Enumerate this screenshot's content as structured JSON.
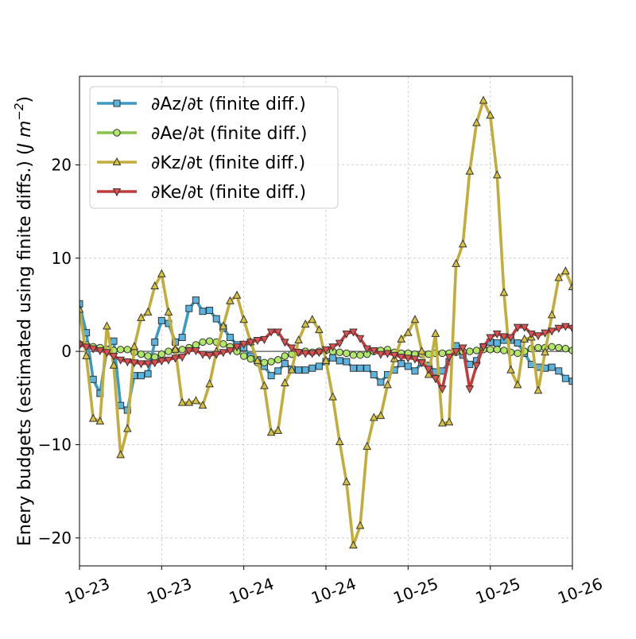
{
  "chart_data": {
    "type": "line",
    "title": "",
    "xlabel": "",
    "ylabel": "Enery budgets (estimated using finite diffs.) (J m⁻²)",
    "ylabel_main": "Enery budgets (estimated using finite diffs.) (",
    "ylabel_unit": "J m",
    "ylabel_exp": "−2",
    "ylabel_close": ")",
    "xlim": [
      0,
      72
    ],
    "ylim": [
      -23.0,
      29.5
    ],
    "grid": true,
    "legend_position": "top-left",
    "xticks": [
      {
        "x": 0,
        "label": "10-23"
      },
      {
        "x": 12,
        "label": "10-23"
      },
      {
        "x": 24,
        "label": "10-24"
      },
      {
        "x": 36,
        "label": "10-24"
      },
      {
        "x": 48,
        "label": "10-25"
      },
      {
        "x": 60,
        "label": "10-25"
      },
      {
        "x": 72,
        "label": "10-26"
      }
    ],
    "yticks": [
      {
        "y": -20,
        "label": "−20"
      },
      {
        "y": -10,
        "label": "−10"
      },
      {
        "y": 0,
        "label": "0"
      },
      {
        "y": 10,
        "label": "10"
      },
      {
        "y": 20,
        "label": "20"
      }
    ],
    "x": [
      0,
      1,
      2,
      3,
      4,
      5,
      6,
      7,
      8,
      9,
      10,
      11,
      12,
      13,
      14,
      15,
      16,
      17,
      18,
      19,
      20,
      21,
      22,
      23,
      24,
      25,
      26,
      27,
      28,
      29,
      30,
      31,
      32,
      33,
      34,
      35,
      36,
      37,
      38,
      39,
      40,
      41,
      42,
      43,
      44,
      45,
      46,
      47,
      48,
      49,
      50,
      51,
      52,
      53,
      54,
      55,
      56,
      57,
      58,
      59,
      60,
      61,
      62,
      63,
      64,
      65,
      66,
      67,
      68,
      69,
      70,
      71,
      72
    ],
    "series": [
      {
        "name": "∂Az/∂t (finite diff.)",
        "color": "#3b9ac1",
        "face": "#5bb4e0",
        "marker": "square",
        "values": [
          5.1,
          2.0,
          -3.0,
          -4.5,
          0.2,
          1.1,
          -5.8,
          -6.3,
          -2.6,
          -2.6,
          -2.4,
          1.0,
          3.3,
          3.0,
          1.0,
          1.5,
          4.6,
          5.5,
          4.3,
          4.4,
          3.5,
          2.5,
          1.5,
          0.7,
          0.4,
          -0.5,
          -0.9,
          -1.6,
          -2.6,
          -2.1,
          -1.3,
          -1.9,
          -2.0,
          -2.0,
          -1.8,
          -1.6,
          -1.1,
          -0.7,
          -1.0,
          -1.1,
          -1.8,
          -1.8,
          -1.8,
          -2.5,
          -3.3,
          -2.5,
          -2.0,
          -1.3,
          -1.6,
          -2.1,
          -1.2,
          -1.5,
          -2.2,
          -2.1,
          -1.1,
          0.6,
          -0.4,
          -1.4,
          -1.0,
          0.5,
          1.0,
          0.9,
          1.2,
          1.2,
          0.9,
          -0.2,
          -1.4,
          -1.7,
          -1.8,
          -1.7,
          -2.1,
          -2.9,
          -3.2
        ]
      },
      {
        "name": "∂Ae/∂t (finite diff.)",
        "color": "#8bc34a",
        "face": "#b2e86a",
        "marker": "circle",
        "values": [
          0.8,
          0.7,
          0.5,
          0.4,
          0.2,
          0.1,
          0.2,
          0.2,
          -0.1,
          -0.3,
          -0.5,
          -0.6,
          -0.3,
          0.0,
          0.1,
          0.2,
          0.4,
          0.7,
          1.0,
          1.1,
          1.0,
          0.8,
          0.5,
          0.0,
          -0.5,
          -0.8,
          -1.2,
          -1.2,
          -1.1,
          -0.9,
          -0.5,
          -0.3,
          -0.1,
          0.0,
          -0.1,
          0.0,
          0.1,
          0.0,
          -0.1,
          -0.2,
          -0.4,
          -0.4,
          -0.3,
          0.0,
          0.1,
          0.2,
          -0.1,
          -0.2,
          -0.2,
          -0.3,
          -0.3,
          -0.3,
          -0.2,
          -0.2,
          -0.2,
          -0.1,
          0.0,
          0.0,
          0.1,
          0.2,
          0.2,
          0.2,
          0.1,
          -0.1,
          -0.2,
          0.0,
          0.3,
          0.4,
          0.4,
          0.5,
          0.4,
          0.3,
          0.1
        ]
      },
      {
        "name": "∂Kz/∂t (finite diff.)",
        "color": "#c2ad3c",
        "face": "#d8c33e",
        "marker": "triangle-up",
        "values": [
          4.5,
          -0.5,
          -7.2,
          -7.5,
          2.7,
          -1.5,
          -11.1,
          -8.3,
          0.5,
          3.6,
          4.2,
          7.0,
          8.3,
          4.2,
          0.2,
          -5.5,
          -5.5,
          -5.3,
          -5.8,
          -3.5,
          0.0,
          2.7,
          5.4,
          6.0,
          3.4,
          1.0,
          -1.0,
          -3.7,
          -8.7,
          -8.5,
          -3.4,
          -2.0,
          1.2,
          2.9,
          3.4,
          2.3,
          -1.0,
          -4.9,
          -9.7,
          -14.0,
          -20.8,
          -18.7,
          -10.2,
          -7.1,
          -6.9,
          -3.6,
          -0.8,
          1.3,
          2.0,
          3.4,
          0.0,
          -2.5,
          1.9,
          -7.7,
          -7.6,
          9.4,
          11.5,
          19.3,
          24.5,
          26.9,
          25.3,
          18.9,
          6.3,
          -2.0,
          -3.6,
          1.3,
          1.5,
          -4.2,
          -0.1,
          3.9,
          7.9,
          8.6,
          6.9
        ]
      },
      {
        "name": "∂Ke/∂t (finite diff.)",
        "color": "#c03b3b",
        "face": "#e05050",
        "marker": "triangle-down",
        "values": [
          0.7,
          0.5,
          0.3,
          0.1,
          -0.1,
          -0.5,
          -0.9,
          -1.1,
          -1.2,
          -1.3,
          -1.3,
          -1.2,
          -1.0,
          -0.9,
          -0.7,
          -0.6,
          0.1,
          0.1,
          -0.3,
          -0.4,
          -0.3,
          -0.1,
          0.1,
          0.5,
          0.8,
          1.0,
          1.2,
          1.3,
          2.1,
          2.1,
          1.0,
          0.4,
          -0.1,
          -0.2,
          -0.2,
          -0.1,
          0.2,
          0.5,
          0.9,
          1.9,
          2.1,
          1.4,
          0.3,
          0.1,
          -0.3,
          -0.2,
          -0.4,
          -0.6,
          -0.7,
          -0.8,
          -1.2,
          -1.9,
          -2.9,
          -4.0,
          -0.6,
          0.0,
          0.4,
          -4.0,
          -1.5,
          0.5,
          1.5,
          1.9,
          1.6,
          1.5,
          2.6,
          2.6,
          1.9,
          1.7,
          2.0,
          2.2,
          2.5,
          2.7,
          2.5
        ]
      }
    ]
  }
}
